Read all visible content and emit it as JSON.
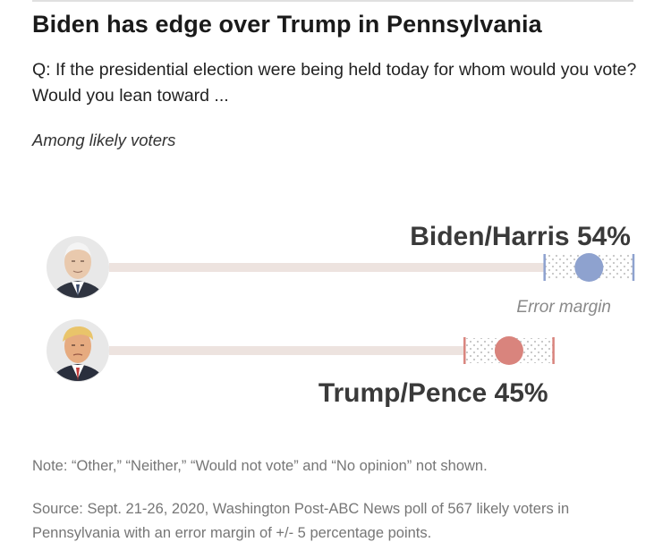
{
  "headline": "Biden has edge over Trump in Pennsylvania",
  "question": "Q: If the presidential election were being held today for whom would you vote? Would you lean toward ...",
  "subtitle": "Among likely voters",
  "error_margin_label": "Error margin",
  "note": "Note: “Other,” “Neither,” “Would not vote” and “No opinion” not shown.",
  "source": "Source: Sept. 21-26, 2020, Washington Post-ABC News poll of 567 likely voters in Pennsylvania with an error margin of +/- 5 percentage points.",
  "colors": {
    "biden": "#8ea2cf",
    "trump": "#d9847d",
    "track": "#ede3df",
    "error_dots": "#c9c9c9"
  },
  "chart_data": {
    "type": "dot-with-error-bar",
    "unit": "%",
    "margin_of_error": 5,
    "xlim": [
      0,
      59
    ],
    "series": [
      {
        "name": "Biden/Harris",
        "label": "Biden/Harris 54%",
        "value": 54,
        "low": 49,
        "high": 59,
        "color": "#8ea2cf",
        "icon": "biden-portrait-icon"
      },
      {
        "name": "Trump/Pence",
        "label": "Trump/Pence 45%",
        "value": 45,
        "low": 40,
        "high": 50,
        "color": "#d9847d",
        "icon": "trump-portrait-icon"
      }
    ]
  }
}
